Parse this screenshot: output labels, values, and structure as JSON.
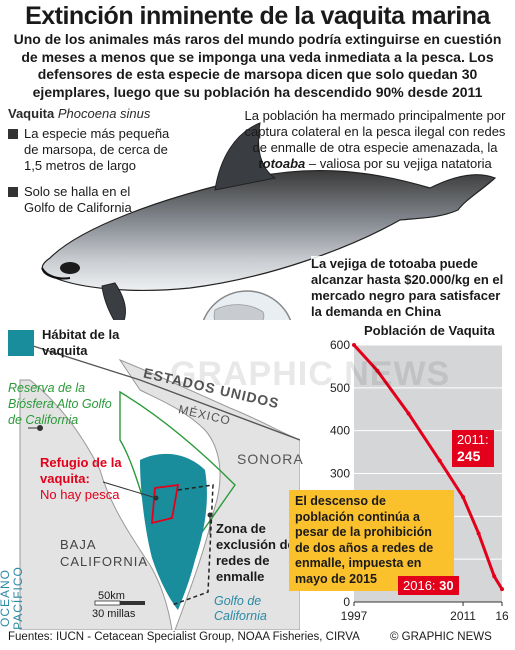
{
  "title": "Extinción inminente de la vaquita marina",
  "subtitle": "Uno de los animales más raros del mundo podría extinguirse en cuestión de meses a menos que se imponga una veda inmediata a la pesca. Los defensores de esta especie de marsopa dicen que solo quedan 30 ejemplares, luego que su población ha descendido 90% desde 2011",
  "species": {
    "name": "Vaquita",
    "latin": "Phocoena sinus",
    "facts": [
      "La especie más pequeña de marsopa, de cerca de 1,5 metros de largo",
      "Solo se halla en el Golfo de California"
    ]
  },
  "threat": {
    "text_before": "La población ha mermado principalmente por captura colateral en la pesca ilegal con redes de enmalle de otra especie amenazada, la ",
    "species": "totoaba",
    "text_after": " – valiosa por su vejiga natatoria"
  },
  "market": "La vejiga de totoaba puede alcanzar hasta $20.000/kg en el mercado negro para satisfacer la demanda en China",
  "map": {
    "habitat_legend": "Hábitat de la vaquita",
    "reserve": "Reserva de la Biósfera Alto Golfo de California",
    "refuge_title": "Refugio de la vaquita:",
    "refuge_sub": "No hay pesca",
    "exclusion_zone": "Zona de exclusión de redes de enmalle",
    "country_us": "ESTADOS UNIDOS",
    "country_mx": "MÉXICO",
    "sonora": "SONORA",
    "baja": "BAJA CALIFORNIA",
    "pacific": "OCÉANO PACÍFICO",
    "gulf": "Golfo de California",
    "scale_km": "50km",
    "scale_mi": "30 millas",
    "colors": {
      "habitat": "#1a8d9d",
      "reserve": "#2b9a3a",
      "refuge": "#e2001a"
    }
  },
  "chart_data": {
    "type": "line",
    "title": "Población de Vaquita",
    "x": [
      1997,
      2000,
      2004,
      2008,
      2011,
      2013,
      2015,
      2016
    ],
    "values": [
      600,
      540,
      440,
      330,
      245,
      160,
      60,
      30
    ],
    "xticks": [
      "1997",
      "2011",
      "16"
    ],
    "yticks": [
      0,
      100,
      200,
      300,
      400,
      500,
      600
    ],
    "ylim": [
      0,
      600
    ],
    "xlabel": "",
    "ylabel": "",
    "callout": "El descenso de población continúa a pesar de la prohibición de dos años a redes de enmalle, impuesta en mayo de 2015",
    "label_2011_year": "2011:",
    "label_2011_value": "245",
    "label_2016_year": "2016:",
    "label_2016_value": "30",
    "line_color": "#e2001a",
    "callout_color": "#fbc12d"
  },
  "footer": {
    "sources": "Fuentes: IUCN - Cetacean Specialist Group, NOAA Fisheries, CIRVA",
    "credit": "© GRAPHIC NEWS"
  },
  "watermark": "GRAPHIC NEWS"
}
